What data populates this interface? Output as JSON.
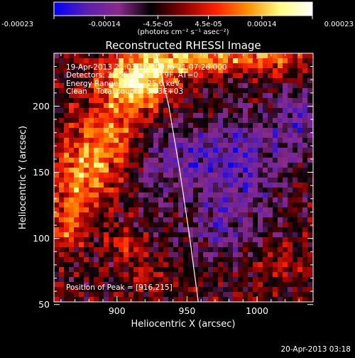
{
  "chart_data": {
    "type": "heatmap",
    "title": "Reconstructed RHESSI Image",
    "xlabel": "Heliocentric X (arcsec)",
    "ylabel": "Heliocentric Y (arcsec)",
    "xlim": [
      855,
      1040
    ],
    "ylim": [
      52,
      240
    ],
    "x_ticks": [
      900,
      950,
      1000
    ],
    "y_ticks": [
      50,
      100,
      150,
      200
    ],
    "colorbar": {
      "range": [
        -0.00023,
        0.00023
      ],
      "tick_values": [
        -0.00023,
        -0.00014,
        -4.5e-05,
        4.5e-05,
        0.00014,
        0.00023
      ],
      "tick_labels": [
        "-0.00023",
        "-0.00014",
        "-4.5e-05",
        "4.5e-05",
        "0.00014",
        "0.00023"
      ],
      "units": "(photons cm⁻² s⁻¹ asec⁻²)",
      "stops": [
        "#0000ff",
        "#5a1fb0",
        "#8a2a8a",
        "#000000",
        "#8b0000",
        "#ff2000",
        "#ff9000",
        "#ffff80",
        "#ffffff"
      ]
    },
    "annotations": [
      "19-Apr-2013 21:03:16.000 to 21:07:26.000",
      "Detectors: 3F 5F 6F 7F 8F 9F, AT=0",
      "Energy Range: 12.0 - 25.0 keV",
      "Clean    Total counts: 5.33E+03"
    ],
    "peak_label": "Position of Peak = [916,215]",
    "peak": [
      916,
      215
    ],
    "limb_line": [
      [
        928,
        240
      ],
      [
        937,
        200
      ],
      [
        945,
        150
      ],
      [
        952,
        100
      ],
      [
        958,
        52
      ]
    ],
    "sources": [
      {
        "x": 915,
        "y": 218,
        "amp": 0.00022,
        "sx": 18,
        "sy": 14
      },
      {
        "x": 950,
        "y": 236,
        "amp": 0.00016,
        "sx": 25,
        "sy": 8
      },
      {
        "x": 1005,
        "y": 236,
        "amp": 0.00012,
        "sx": 25,
        "sy": 7
      },
      {
        "x": 895,
        "y": 175,
        "amp": 0.00014,
        "sx": 16,
        "sy": 22
      },
      {
        "x": 872,
        "y": 145,
        "amp": 0.00013,
        "sx": 14,
        "sy": 20
      },
      {
        "x": 865,
        "y": 110,
        "amp": 0.00011,
        "sx": 10,
        "sy": 12
      },
      {
        "x": 905,
        "y": 95,
        "amp": 7e-05,
        "sx": 8,
        "sy": 8
      },
      {
        "x": 918,
        "y": 70,
        "amp": 6e-05,
        "sx": 10,
        "sy": 10
      },
      {
        "x": 1015,
        "y": 80,
        "amp": 5e-05,
        "sx": 12,
        "sy": 10
      },
      {
        "x": 935,
        "y": 160,
        "amp": -9e-05,
        "sx": 20,
        "sy": 18
      },
      {
        "x": 985,
        "y": 160,
        "amp": -0.00012,
        "sx": 24,
        "sy": 24
      },
      {
        "x": 975,
        "y": 110,
        "amp": -8e-05,
        "sx": 20,
        "sy": 16
      },
      {
        "x": 1030,
        "y": 190,
        "amp": -0.0001,
        "sx": 14,
        "sy": 16
      }
    ]
  },
  "footer": {
    "timestamp": "20-Apr-2013 03:18"
  }
}
